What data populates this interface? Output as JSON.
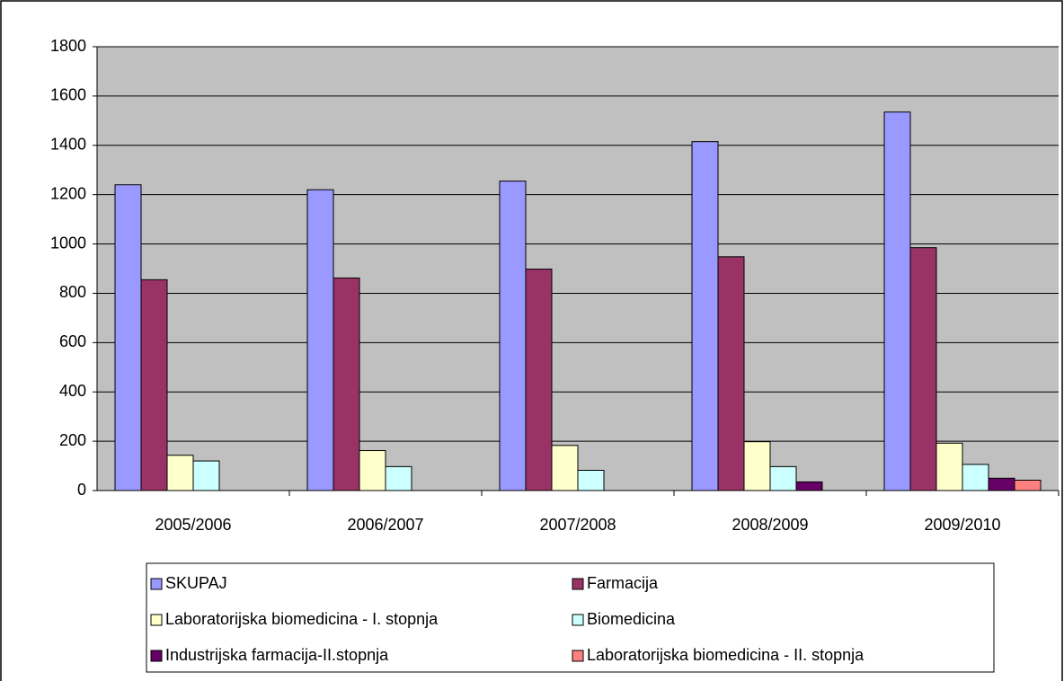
{
  "chart_data": {
    "type": "bar",
    "categories": [
      "2005/2006",
      "2006/2007",
      "2007/2008",
      "2008/2009",
      "2009/2010"
    ],
    "series": [
      {
        "name": "SKUPAJ",
        "color": "#9999ff",
        "values": [
          1240,
          1220,
          1255,
          1415,
          1535
        ]
      },
      {
        "name": "Farmacija",
        "color": "#993366",
        "values": [
          855,
          862,
          898,
          948,
          985
        ]
      },
      {
        "name": "Laboratorijska biomedicina - I. stopnja",
        "color": "#ffffcc",
        "values": [
          143,
          162,
          183,
          198,
          192
        ]
      },
      {
        "name": "Biomedicina",
        "color": "#ccffff",
        "values": [
          120,
          97,
          82,
          97,
          106
        ]
      },
      {
        "name": "Industrijska farmacija-II.stopnja",
        "color": "#660066",
        "values": [
          null,
          null,
          null,
          35,
          50
        ]
      },
      {
        "name": "Laboratorijska biomedicina - II. stopnja",
        "color": "#ff8080",
        "values": [
          null,
          null,
          null,
          null,
          42
        ]
      }
    ],
    "ylim": [
      0,
      1800
    ],
    "yticks": [
      0,
      200,
      400,
      600,
      800,
      1000,
      1200,
      1400,
      1600,
      1800
    ],
    "grid": true,
    "legend": "bottom"
  }
}
